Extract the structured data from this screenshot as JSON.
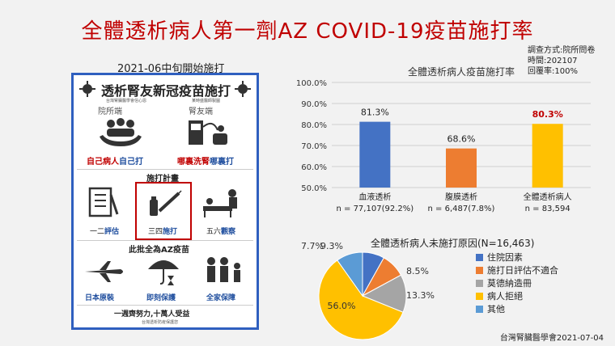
{
  "title": "全體透析病人第一劑AZ COVID-19疫苗施打率",
  "survey_info": [
    "調查方式:院所問卷",
    "時間:202107",
    "回覆率:100%"
  ],
  "poster": {
    "caption": "2021-06中旬開始施打",
    "heading": "透析腎友新冠疫苗施打",
    "org_left": "台灣腎臟醫學會信心恩",
    "org_right": "某時盛醫師製圖",
    "col_left": "院所端",
    "col_right": "腎友端",
    "left_label_a": "自己病人",
    "left_label_b": "自己打",
    "right_label_a": "哪裏洗腎",
    "right_label_b": "哪裏打",
    "plan_heading": "施打計畫",
    "step1_a": "一二",
    "step1_b": "評估",
    "step2_a": "三四",
    "step2_b": "施打",
    "step3_a": "五六",
    "step3_b": "觀察",
    "az_heading": "此批全為AZ疫苗",
    "feature1": "日本原裝",
    "feature2": "即刻保護",
    "feature3": "全家保障",
    "slogan": "一週齊努力,十萬人受益",
    "slogan_sub": "台灣透析防疫保護您"
  },
  "footer": "台灣腎臟醫學會2021-07-04",
  "colors": {
    "title": "#c00000",
    "blue": "#4472c4",
    "orange": "#ed7d31",
    "gray": "#a5a5a5",
    "yellow": "#ffc000",
    "highlight": "#c00000"
  },
  "chart_data": [
    {
      "type": "bar",
      "title": "全體透析病人疫苗施打率",
      "categories": [
        "血液透析",
        "腹膜透析",
        "全體透析病人"
      ],
      "sublabels": [
        "n = 77,107(92.2%)",
        "n = 6,487(7.8%)",
        "n = 83,594"
      ],
      "values": [
        81.3,
        68.6,
        80.3
      ],
      "value_labels": [
        "81.3%",
        "68.6%",
        "80.3%"
      ],
      "colors": [
        "#4472c4",
        "#ed7d31",
        "#ffc000"
      ],
      "label_colors": [
        "#222222",
        "#222222",
        "#c00000"
      ],
      "ylim": [
        50,
        100
      ],
      "yticks": [
        "50.0%",
        "60.0%",
        "70.0%",
        "80.0%",
        "90.0%",
        "100.0%"
      ],
      "grid": true
    },
    {
      "type": "pie",
      "title": "全體透析病人未施打原因(N=16,463)",
      "categories": [
        "住院因素",
        "施打日評估不適合",
        "莫德納造冊",
        "病人拒絕",
        "其他"
      ],
      "values": [
        7.7,
        8.5,
        13.3,
        56.0,
        9.3
      ],
      "value_labels": [
        "7.7%",
        "8.5%",
        "13.3%",
        "56.0%",
        "9.3%"
      ],
      "colors": [
        "#4472c4",
        "#ed7d31",
        "#a5a5a5",
        "#ffc000",
        "#5b9bd5"
      ],
      "legend": "right"
    }
  ]
}
